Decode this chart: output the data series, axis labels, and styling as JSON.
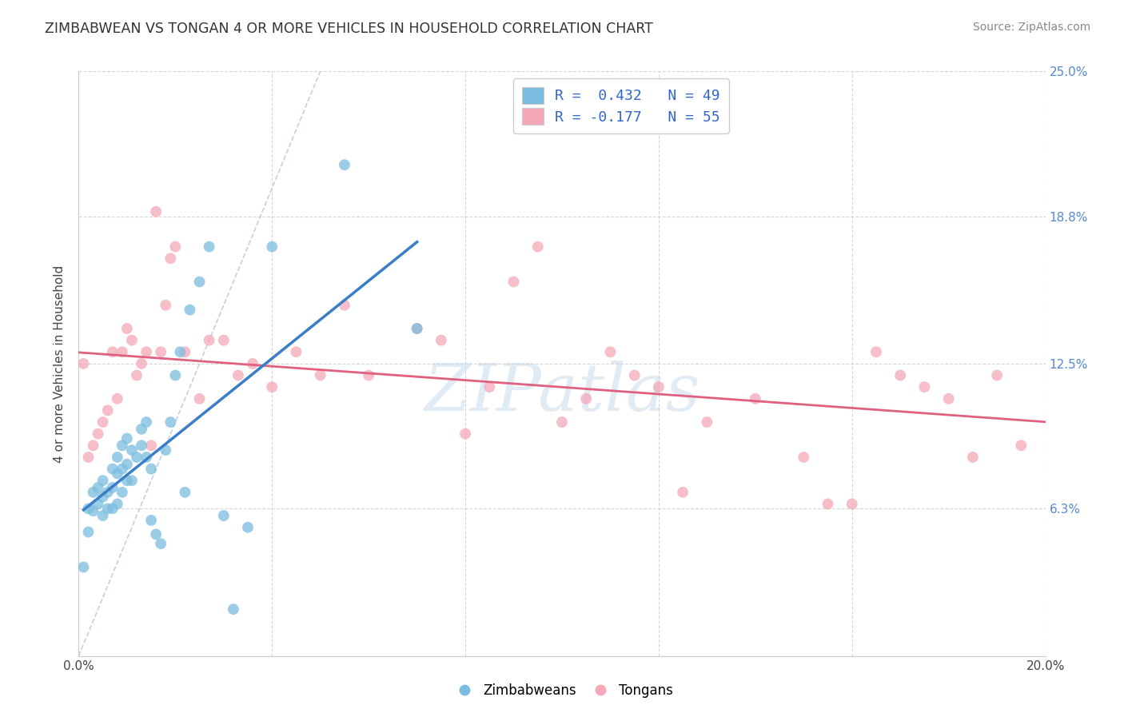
{
  "title": "ZIMBABWEAN VS TONGAN 4 OR MORE VEHICLES IN HOUSEHOLD CORRELATION CHART",
  "source": "Source: ZipAtlas.com",
  "ylabel": "4 or more Vehicles in Household",
  "x_min": 0.0,
  "x_max": 0.2,
  "y_min": 0.0,
  "y_max": 0.25,
  "x_ticks": [
    0.0,
    0.04,
    0.08,
    0.12,
    0.16,
    0.2
  ],
  "x_tick_labels": [
    "0.0%",
    "",
    "",
    "",
    "",
    "20.0%"
  ],
  "y_ticks_right": [
    0.063,
    0.125,
    0.188,
    0.25
  ],
  "y_tick_labels_right": [
    "6.3%",
    "12.5%",
    "18.8%",
    "25.0%"
  ],
  "legend_r1": "R =  0.432   N = 49",
  "legend_r2": "R = -0.177   N = 55",
  "blue_color": "#7bbde0",
  "pink_color": "#f4a8b8",
  "blue_line_color": "#3a7ec8",
  "pink_line_color": "#e06080",
  "diagonal_color": "#b8cce4",
  "watermark_text": "ZIPatlas",
  "zimbabwean_x": [
    0.001,
    0.002,
    0.002,
    0.003,
    0.003,
    0.004,
    0.004,
    0.005,
    0.005,
    0.005,
    0.006,
    0.006,
    0.007,
    0.007,
    0.007,
    0.008,
    0.008,
    0.008,
    0.009,
    0.009,
    0.009,
    0.01,
    0.01,
    0.01,
    0.011,
    0.011,
    0.012,
    0.013,
    0.013,
    0.014,
    0.014,
    0.015,
    0.015,
    0.016,
    0.017,
    0.018,
    0.019,
    0.02,
    0.021,
    0.022,
    0.023,
    0.025,
    0.027,
    0.03,
    0.032,
    0.035,
    0.04,
    0.055,
    0.07
  ],
  "zimbabwean_y": [
    0.038,
    0.053,
    0.063,
    0.062,
    0.07,
    0.065,
    0.072,
    0.068,
    0.075,
    0.06,
    0.07,
    0.063,
    0.072,
    0.08,
    0.063,
    0.065,
    0.078,
    0.085,
    0.07,
    0.08,
    0.09,
    0.075,
    0.082,
    0.093,
    0.075,
    0.088,
    0.085,
    0.09,
    0.097,
    0.085,
    0.1,
    0.08,
    0.058,
    0.052,
    0.048,
    0.088,
    0.1,
    0.12,
    0.13,
    0.07,
    0.148,
    0.16,
    0.175,
    0.06,
    0.02,
    0.055,
    0.175,
    0.21,
    0.14
  ],
  "tongan_x": [
    0.001,
    0.002,
    0.003,
    0.004,
    0.005,
    0.006,
    0.007,
    0.008,
    0.009,
    0.01,
    0.011,
    0.012,
    0.013,
    0.014,
    0.015,
    0.016,
    0.017,
    0.018,
    0.019,
    0.02,
    0.022,
    0.025,
    0.027,
    0.03,
    0.033,
    0.036,
    0.04,
    0.045,
    0.05,
    0.055,
    0.06,
    0.07,
    0.075,
    0.08,
    0.085,
    0.09,
    0.095,
    0.1,
    0.105,
    0.11,
    0.115,
    0.12,
    0.125,
    0.13,
    0.14,
    0.15,
    0.155,
    0.16,
    0.165,
    0.17,
    0.175,
    0.18,
    0.185,
    0.19,
    0.195
  ],
  "tongan_y": [
    0.125,
    0.085,
    0.09,
    0.095,
    0.1,
    0.105,
    0.13,
    0.11,
    0.13,
    0.14,
    0.135,
    0.12,
    0.125,
    0.13,
    0.09,
    0.19,
    0.13,
    0.15,
    0.17,
    0.175,
    0.13,
    0.11,
    0.135,
    0.135,
    0.12,
    0.125,
    0.115,
    0.13,
    0.12,
    0.15,
    0.12,
    0.14,
    0.135,
    0.095,
    0.115,
    0.16,
    0.175,
    0.1,
    0.11,
    0.13,
    0.12,
    0.115,
    0.07,
    0.1,
    0.11,
    0.085,
    0.065,
    0.065,
    0.13,
    0.12,
    0.115,
    0.11,
    0.085,
    0.12,
    0.09
  ]
}
